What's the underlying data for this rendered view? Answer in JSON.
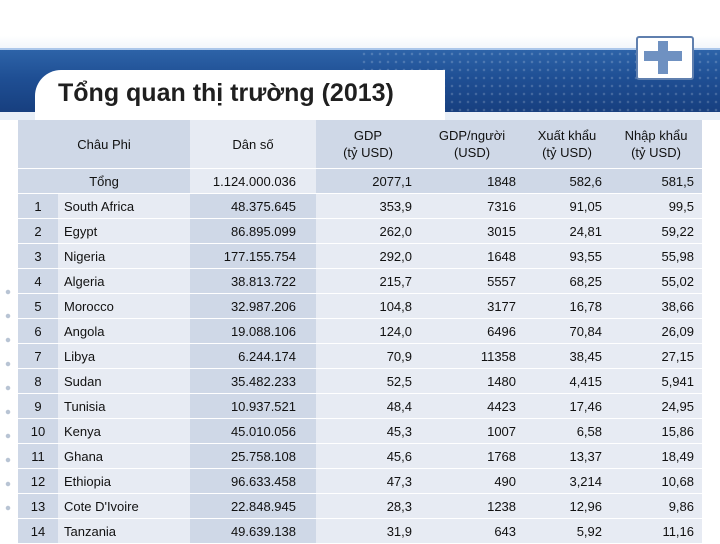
{
  "title": "Tổng quan thị trường (2013)",
  "colors": {
    "header_band": "#1f4f94",
    "cell_dark": "#cfd8e7",
    "cell_light": "#e7ebf3"
  },
  "table": {
    "headers": [
      "Châu Phi",
      "Dân số",
      "GDP\n(tỷ USD)",
      "GDP/người\n(USD)",
      "Xuất khẩu\n(tỷ USD)",
      "Nhập khẩu\n(tỷ USD)"
    ],
    "total": {
      "label": "Tổng",
      "population": "1.124.000.036",
      "gdp": "2077,1",
      "gdp_per_capita": "1848",
      "exports": "582,6",
      "imports": "581,5"
    },
    "rows": [
      {
        "rank": "1",
        "country": "South Africa",
        "population": "48.375.645",
        "gdp": "353,9",
        "gdp_per_capita": "7316",
        "exports": "91,05",
        "imports": "99,5"
      },
      {
        "rank": "2",
        "country": "Egypt",
        "population": "86.895.099",
        "gdp": "262,0",
        "gdp_per_capita": "3015",
        "exports": "24,81",
        "imports": "59,22"
      },
      {
        "rank": "3",
        "country": "Nigeria",
        "population": "177.155.754",
        "gdp": "292,0",
        "gdp_per_capita": "1648",
        "exports": "93,55",
        "imports": "55,98"
      },
      {
        "rank": "4",
        "country": "Algeria",
        "population": "38.813.722",
        "gdp": "215,7",
        "gdp_per_capita": "5557",
        "exports": "68,25",
        "imports": "55,02"
      },
      {
        "rank": "5",
        "country": "Morocco",
        "population": "32.987.206",
        "gdp": "104,8",
        "gdp_per_capita": "3177",
        "exports": "16,78",
        "imports": "38,66"
      },
      {
        "rank": "6",
        "country": "Angola",
        "population": "19.088.106",
        "gdp": "124,0",
        "gdp_per_capita": "6496",
        "exports": "70,84",
        "imports": "26,09"
      },
      {
        "rank": "7",
        "country": "Libya",
        "population": "6.244.174",
        "gdp": "70,9",
        "gdp_per_capita": "11358",
        "exports": "38,45",
        "imports": "27,15"
      },
      {
        "rank": "8",
        "country": "Sudan",
        "population": "35.482.233",
        "gdp": "52,5",
        "gdp_per_capita": "1480",
        "exports": "4,415",
        "imports": "5,941"
      },
      {
        "rank": "9",
        "country": "Tunisia",
        "population": "10.937.521",
        "gdp": "48,4",
        "gdp_per_capita": "4423",
        "exports": "17,46",
        "imports": "24,95"
      },
      {
        "rank": "10",
        "country": "Kenya",
        "population": "45.010.056",
        "gdp": "45,3",
        "gdp_per_capita": "1007",
        "exports": "6,58",
        "imports": "15,86"
      },
      {
        "rank": "11",
        "country": "Ghana",
        "population": "25.758.108",
        "gdp": "45,6",
        "gdp_per_capita": "1768",
        "exports": "13,37",
        "imports": "18,49"
      },
      {
        "rank": "12",
        "country": "Ethiopia",
        "population": "96.633.458",
        "gdp": "47,3",
        "gdp_per_capita": "490",
        "exports": "3,214",
        "imports": "10,68"
      },
      {
        "rank": "13",
        "country": "Cote D'Ivoire",
        "population": "22.848.945",
        "gdp": "28,3",
        "gdp_per_capita": "1238",
        "exports": "12,96",
        "imports": "9,86"
      },
      {
        "rank": "14",
        "country": "Tanzania",
        "population": "49.639.138",
        "gdp": "31,9",
        "gdp_per_capita": "643",
        "exports": "5,92",
        "imports": "11,16"
      }
    ]
  }
}
